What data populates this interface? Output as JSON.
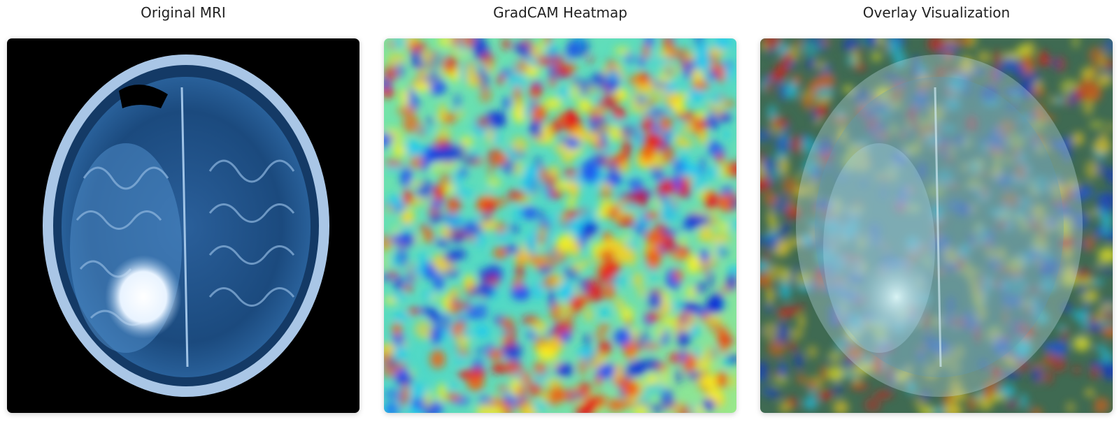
{
  "panels": [
    {
      "title": "Original MRI",
      "icon": "brain-mri-image"
    },
    {
      "title": "GradCAM Heatmap",
      "icon": "heatmap-image"
    },
    {
      "title": "Overlay Visualization",
      "icon": "overlay-image"
    }
  ],
  "colors": {
    "mri_background": "#000000",
    "mri_tissue": "#1f4f86",
    "mri_bright": "#e8f3ff",
    "heatmap_base": "#5fe0a0"
  }
}
